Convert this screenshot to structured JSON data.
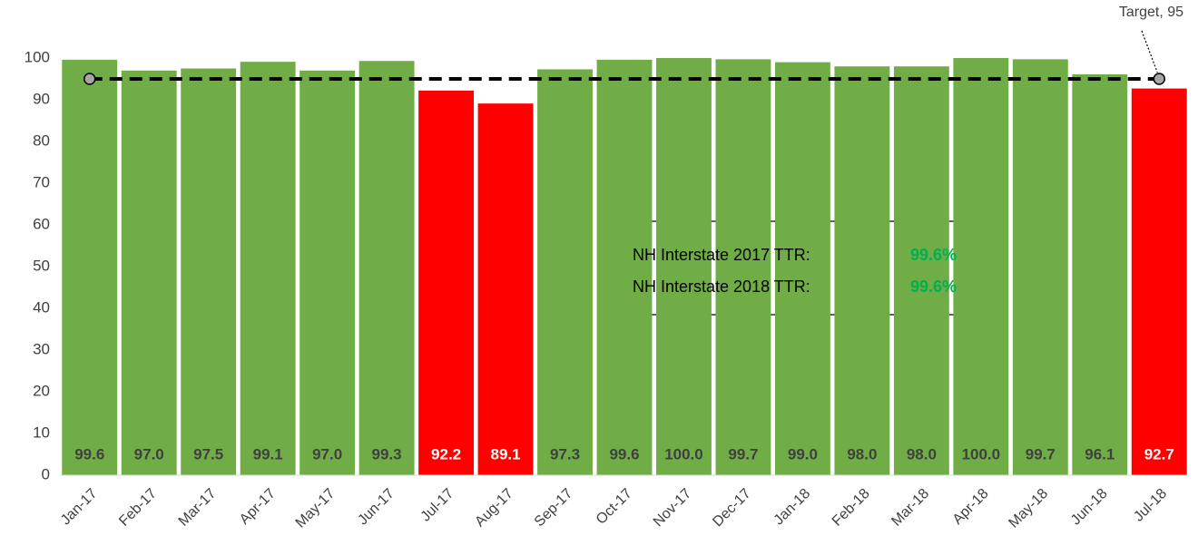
{
  "chart_data": {
    "type": "bar",
    "categories": [
      "Jan-17",
      "Feb-17",
      "Mar-17",
      "Apr-17",
      "May-17",
      "Jun-17",
      "Jul-17",
      "Aug-17",
      "Sep-17",
      "Oct-17",
      "Nov-17",
      "Dec-17",
      "Jan-18",
      "Feb-18",
      "Mar-18",
      "Apr-18",
      "May-18",
      "Jun-18",
      "Jul-18"
    ],
    "values": [
      99.6,
      97,
      97.5,
      99.1,
      97,
      99.3,
      92.2,
      89.1,
      97.3,
      99.6,
      100,
      99.7,
      99,
      98,
      98,
      100,
      99.7,
      96.1,
      92.7
    ],
    "value_labels": [
      "99.6",
      "97.0",
      "97.5",
      "99.1",
      "97.0",
      "99.3",
      "92.2",
      "89.1",
      "97.3",
      "99.6",
      "100.0",
      "99.7",
      "99.0",
      "98.0",
      "98.0",
      "100.0",
      "99.7",
      "96.1",
      "92.7"
    ],
    "colors": [
      "#70ad47",
      "#70ad47",
      "#70ad47",
      "#70ad47",
      "#70ad47",
      "#70ad47",
      "#ff0000",
      "#ff0000",
      "#70ad47",
      "#70ad47",
      "#70ad47",
      "#70ad47",
      "#70ad47",
      "#70ad47",
      "#70ad47",
      "#70ad47",
      "#70ad47",
      "#70ad47",
      "#ff0000"
    ],
    "label_colors": [
      "#404040",
      "#404040",
      "#404040",
      "#404040",
      "#404040",
      "#404040",
      "#ffffff",
      "#ffffff",
      "#404040",
      "#404040",
      "#404040",
      "#404040",
      "#404040",
      "#404040",
      "#404040",
      "#404040",
      "#404040",
      "#404040",
      "#ffffff"
    ],
    "ylim": [
      0,
      100
    ],
    "yticks": [
      0,
      10,
      20,
      30,
      40,
      50,
      60,
      70,
      80,
      90,
      100
    ],
    "grid": false,
    "target": {
      "value": 95,
      "label": "Target, 95",
      "color": "#000000"
    },
    "annotations": [
      {
        "label": "NH Interstate 2017 TTR:",
        "value_label": "99.6%"
      },
      {
        "label": "NH Interstate 2018 TTR:",
        "value_label": "99.6%"
      }
    ],
    "annotation_value_color": "#00b050"
  }
}
